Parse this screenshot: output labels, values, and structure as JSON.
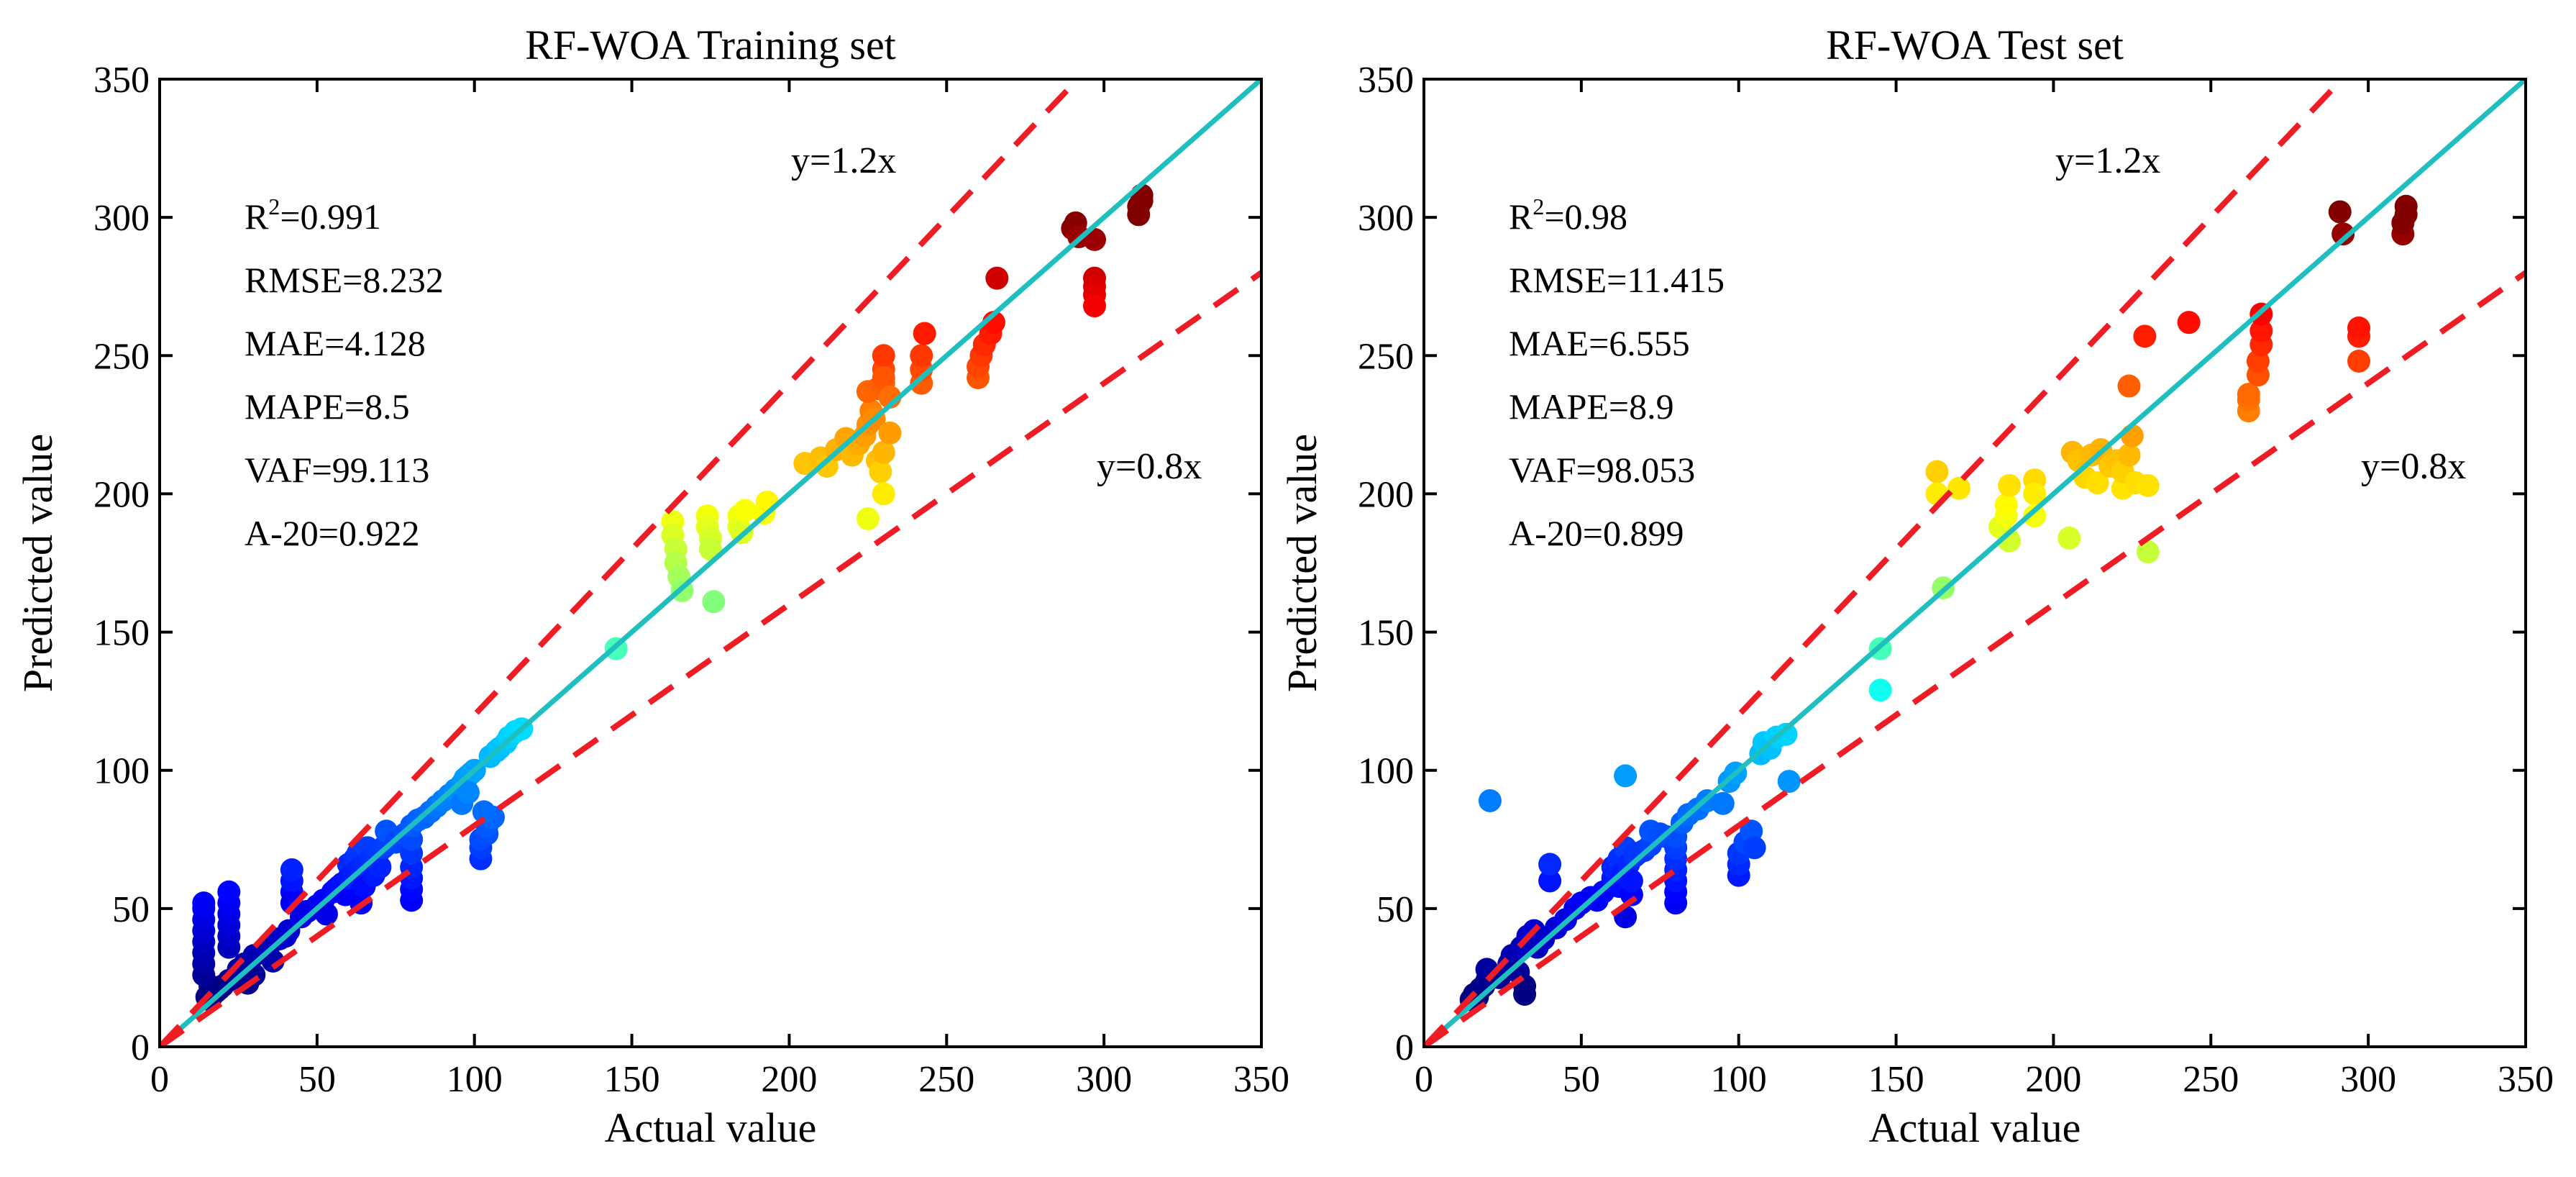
{
  "chart_data": [
    {
      "type": "scatter",
      "title": "RF-WOA Training set",
      "xlabel": "Actual value",
      "ylabel": "Predicted value",
      "xlim": [
        0,
        350
      ],
      "ylim": [
        0,
        350
      ],
      "xticks": [
        "0",
        "50",
        "100",
        "150",
        "200",
        "250",
        "300",
        "350"
      ],
      "yticks": [
        "0",
        "50",
        "100",
        "150",
        "200",
        "250",
        "300",
        "350"
      ],
      "metrics": [
        {
          "prefix": "R",
          "sup": "2",
          "suffix": "=0.991"
        },
        {
          "prefix": "RMSE=8.232",
          "sup": "",
          "suffix": ""
        },
        {
          "prefix": "MAE=4.128",
          "sup": "",
          "suffix": ""
        },
        {
          "prefix": "MAPE=8.5",
          "sup": "",
          "suffix": ""
        },
        {
          "prefix": "VAF=99.113",
          "sup": "",
          "suffix": ""
        },
        {
          "prefix": "A-20=0.922",
          "sup": "",
          "suffix": ""
        }
      ],
      "line_labels": {
        "upper": "y=1.2x",
        "lower": "y=0.8x"
      },
      "lines": [
        {
          "name": "y=x",
          "slope": 1.0,
          "color": "#1fbfbf",
          "dash": false
        },
        {
          "name": "y=1.2x",
          "slope": 1.2,
          "color": "#ee1c24",
          "dash": true
        },
        {
          "name": "y=0.8x",
          "slope": 0.8,
          "color": "#ee1c24",
          "dash": true
        }
      ],
      "points": [
        [
          15,
          18
        ],
        [
          16,
          17
        ],
        [
          17,
          19
        ],
        [
          18,
          20
        ],
        [
          19,
          21
        ],
        [
          20,
          22
        ],
        [
          22,
          24
        ],
        [
          24,
          25
        ],
        [
          16,
          22
        ],
        [
          14,
          26
        ],
        [
          14,
          30
        ],
        [
          14,
          34
        ],
        [
          14,
          38
        ],
        [
          14,
          42
        ],
        [
          14,
          46
        ],
        [
          14,
          50
        ],
        [
          14,
          52
        ],
        [
          22,
          36
        ],
        [
          22,
          40
        ],
        [
          22,
          44
        ],
        [
          22,
          48
        ],
        [
          22,
          52
        ],
        [
          22,
          56
        ],
        [
          25,
          28
        ],
        [
          27,
          30
        ],
        [
          28,
          23
        ],
        [
          30,
          26
        ],
        [
          30,
          33
        ],
        [
          33,
          35
        ],
        [
          35,
          37
        ],
        [
          36,
          31
        ],
        [
          38,
          39
        ],
        [
          40,
          40
        ],
        [
          41,
          42
        ],
        [
          42,
          56
        ],
        [
          42,
          60
        ],
        [
          42,
          64
        ],
        [
          42,
          52
        ],
        [
          45,
          47
        ],
        [
          47,
          49
        ],
        [
          50,
          51
        ],
        [
          52,
          53
        ],
        [
          53,
          48
        ],
        [
          55,
          56
        ],
        [
          56,
          57
        ],
        [
          57,
          58
        ],
        [
          58,
          59
        ],
        [
          59,
          55
        ],
        [
          60,
          61
        ],
        [
          60,
          66
        ],
        [
          61,
          62
        ],
        [
          62,
          63
        ],
        [
          62,
          68
        ],
        [
          63,
          64
        ],
        [
          63,
          70
        ],
        [
          64,
          65
        ],
        [
          64,
          52
        ],
        [
          65,
          66
        ],
        [
          65,
          58
        ],
        [
          66,
          67
        ],
        [
          66,
          72
        ],
        [
          67,
          68
        ],
        [
          68,
          69
        ],
        [
          68,
          62
        ],
        [
          69,
          70
        ],
        [
          70,
          71
        ],
        [
          70,
          65
        ],
        [
          71,
          72
        ],
        [
          72,
          73
        ],
        [
          72,
          78
        ],
        [
          75,
          74
        ],
        [
          78,
          77
        ],
        [
          80,
          53
        ],
        [
          80,
          57
        ],
        [
          80,
          61
        ],
        [
          80,
          65
        ],
        [
          80,
          70
        ],
        [
          80,
          75
        ],
        [
          80,
          80
        ],
        [
          82,
          82
        ],
        [
          84,
          83
        ],
        [
          86,
          85
        ],
        [
          88,
          87
        ],
        [
          90,
          89
        ],
        [
          92,
          91
        ],
        [
          94,
          93
        ],
        [
          96,
          95
        ],
        [
          97,
          97
        ],
        [
          98,
          98
        ],
        [
          99,
          99
        ],
        [
          100,
          100
        ],
        [
          96,
          88
        ],
        [
          98,
          92
        ],
        [
          102,
          68
        ],
        [
          102,
          72
        ],
        [
          102,
          75
        ],
        [
          104,
          77
        ],
        [
          104,
          80
        ],
        [
          106,
          83
        ],
        [
          103,
          85
        ],
        [
          105,
          105
        ],
        [
          107,
          107
        ],
        [
          108,
          108
        ],
        [
          110,
          110
        ],
        [
          111,
          112
        ],
        [
          113,
          114
        ],
        [
          115,
          115
        ],
        [
          145,
          144
        ],
        [
          163,
          190
        ],
        [
          163,
          185
        ],
        [
          164,
          180
        ],
        [
          164,
          175
        ],
        [
          165,
          170
        ],
        [
          166,
          165
        ],
        [
          174,
          192
        ],
        [
          174,
          188
        ],
        [
          175,
          184
        ],
        [
          175,
          180
        ],
        [
          176,
          161
        ],
        [
          184,
          192
        ],
        [
          184,
          188
        ],
        [
          185,
          186
        ],
        [
          186,
          194
        ],
        [
          192,
          193
        ],
        [
          193,
          197
        ],
        [
          225,
          191
        ],
        [
          205,
          211
        ],
        [
          210,
          213
        ],
        [
          212,
          210
        ],
        [
          215,
          216
        ],
        [
          218,
          220
        ],
        [
          220,
          214
        ],
        [
          222,
          218
        ],
        [
          224,
          221
        ],
        [
          225,
          225
        ],
        [
          226,
          230
        ],
        [
          227,
          227
        ],
        [
          228,
          212
        ],
        [
          229,
          208
        ],
        [
          230,
          200
        ],
        [
          230,
          215
        ],
        [
          232,
          222
        ],
        [
          225,
          237
        ],
        [
          228,
          238
        ],
        [
          230,
          240
        ],
        [
          230,
          245
        ],
        [
          230,
          250
        ],
        [
          230,
          242
        ],
        [
          232,
          235
        ],
        [
          242,
          240
        ],
        [
          242,
          245
        ],
        [
          242,
          250
        ],
        [
          243,
          258
        ],
        [
          260,
          242
        ],
        [
          260,
          246
        ],
        [
          261,
          250
        ],
        [
          262,
          254
        ],
        [
          264,
          258
        ],
        [
          265,
          262
        ],
        [
          266,
          278
        ],
        [
          290,
          296
        ],
        [
          291,
          298
        ],
        [
          292,
          293
        ],
        [
          297,
          292
        ],
        [
          297,
          278
        ],
        [
          297,
          275
        ],
        [
          297,
          272
        ],
        [
          297,
          268
        ],
        [
          311,
          301
        ],
        [
          311,
          304
        ],
        [
          312,
          306
        ],
        [
          312,
          308
        ]
      ]
    },
    {
      "type": "scatter",
      "title": "RF-WOA Test set",
      "xlabel": "Actual value",
      "ylabel": "Predicted value",
      "xlim": [
        0,
        350
      ],
      "ylim": [
        0,
        350
      ],
      "xticks": [
        "0",
        "50",
        "100",
        "150",
        "200",
        "250",
        "300",
        "350"
      ],
      "yticks": [
        "0",
        "50",
        "100",
        "150",
        "200",
        "250",
        "300",
        "350"
      ],
      "metrics": [
        {
          "prefix": "R",
          "sup": "2",
          "suffix": "=0.98"
        },
        {
          "prefix": "RMSE=11.415",
          "sup": "",
          "suffix": ""
        },
        {
          "prefix": "MAE=6.555",
          "sup": "",
          "suffix": ""
        },
        {
          "prefix": "MAPE=8.9",
          "sup": "",
          "suffix": ""
        },
        {
          "prefix": "VAF=98.053",
          "sup": "",
          "suffix": ""
        },
        {
          "prefix": "A-20=0.899",
          "sup": "",
          "suffix": ""
        }
      ],
      "line_labels": {
        "upper": "y=1.2x",
        "lower": "y=0.8x"
      },
      "lines": [
        {
          "name": "y=x",
          "slope": 1.0,
          "color": "#1fbfbf",
          "dash": false
        },
        {
          "name": "y=1.2x",
          "slope": 1.2,
          "color": "#ee1c24",
          "dash": true
        },
        {
          "name": "y=0.8x",
          "slope": 0.8,
          "color": "#ee1c24",
          "dash": true
        }
      ],
      "points": [
        [
          15,
          17
        ],
        [
          16,
          19
        ],
        [
          17,
          18
        ],
        [
          18,
          21
        ],
        [
          19,
          22
        ],
        [
          20,
          24
        ],
        [
          20,
          28
        ],
        [
          21,
          89
        ],
        [
          24,
          25
        ],
        [
          27,
          30
        ],
        [
          28,
          33
        ],
        [
          30,
          27
        ],
        [
          31,
          36
        ],
        [
          32,
          22
        ],
        [
          32,
          19
        ],
        [
          33,
          40
        ],
        [
          34,
          38
        ],
        [
          35,
          42
        ],
        [
          36,
          36
        ],
        [
          38,
          39
        ],
        [
          40,
          60
        ],
        [
          40,
          66
        ],
        [
          42,
          43
        ],
        [
          45,
          46
        ],
        [
          48,
          50
        ],
        [
          50,
          52
        ],
        [
          53,
          54
        ],
        [
          55,
          53
        ],
        [
          57,
          56
        ],
        [
          60,
          61
        ],
        [
          60,
          65
        ],
        [
          62,
          58
        ],
        [
          62,
          68
        ],
        [
          63,
          63
        ],
        [
          64,
          47
        ],
        [
          64,
          72
        ],
        [
          65,
          66
        ],
        [
          66,
          55
        ],
        [
          66,
          60
        ],
        [
          67,
          69
        ],
        [
          68,
          70
        ],
        [
          70,
          71
        ],
        [
          72,
          73
        ],
        [
          72,
          78
        ],
        [
          75,
          77
        ],
        [
          77,
          76
        ],
        [
          80,
          52
        ],
        [
          80,
          56
        ],
        [
          80,
          60
        ],
        [
          80,
          64
        ],
        [
          80,
          68
        ],
        [
          80,
          72
        ],
        [
          80,
          76
        ],
        [
          82,
          81
        ],
        [
          84,
          84
        ],
        [
          87,
          86
        ],
        [
          90,
          89
        ],
        [
          64,
          98
        ],
        [
          95,
          88
        ],
        [
          97,
          96
        ],
        [
          99,
          99
        ],
        [
          100,
          62
        ],
        [
          100,
          66
        ],
        [
          100,
          70
        ],
        [
          102,
          74
        ],
        [
          104,
          78
        ],
        [
          105,
          72
        ],
        [
          107,
          106
        ],
        [
          108,
          110
        ],
        [
          110,
          108
        ],
        [
          112,
          112
        ],
        [
          115,
          113
        ],
        [
          116,
          96
        ],
        [
          145,
          144
        ],
        [
          145,
          129
        ],
        [
          165,
          166
        ],
        [
          163,
          208
        ],
        [
          163,
          200
        ],
        [
          170,
          202
        ],
        [
          183,
          188
        ],
        [
          185,
          192
        ],
        [
          185,
          196
        ],
        [
          186,
          203
        ],
        [
          186,
          183
        ],
        [
          194,
          205
        ],
        [
          194,
          200
        ],
        [
          194,
          192
        ],
        [
          205,
          184
        ],
        [
          206,
          215
        ],
        [
          208,
          212
        ],
        [
          210,
          206
        ],
        [
          212,
          214
        ],
        [
          214,
          204
        ],
        [
          215,
          216
        ],
        [
          218,
          210
        ],
        [
          220,
          212
        ],
        [
          222,
          202
        ],
        [
          222,
          208
        ],
        [
          224,
          214
        ],
        [
          225,
          221
        ],
        [
          226,
          204
        ],
        [
          230,
          203
        ],
        [
          230,
          179
        ],
        [
          224,
          239
        ],
        [
          229,
          257
        ],
        [
          243,
          262
        ],
        [
          262,
          230
        ],
        [
          262,
          234
        ],
        [
          262,
          236
        ],
        [
          265,
          243
        ],
        [
          265,
          248
        ],
        [
          266,
          254
        ],
        [
          266,
          259
        ],
        [
          266,
          265
        ],
        [
          291,
          302
        ],
        [
          292,
          294
        ],
        [
          297,
          248
        ],
        [
          297,
          257
        ],
        [
          297,
          260
        ],
        [
          311,
          294
        ],
        [
          311,
          298
        ],
        [
          312,
          301
        ],
        [
          312,
          304
        ]
      ]
    }
  ]
}
